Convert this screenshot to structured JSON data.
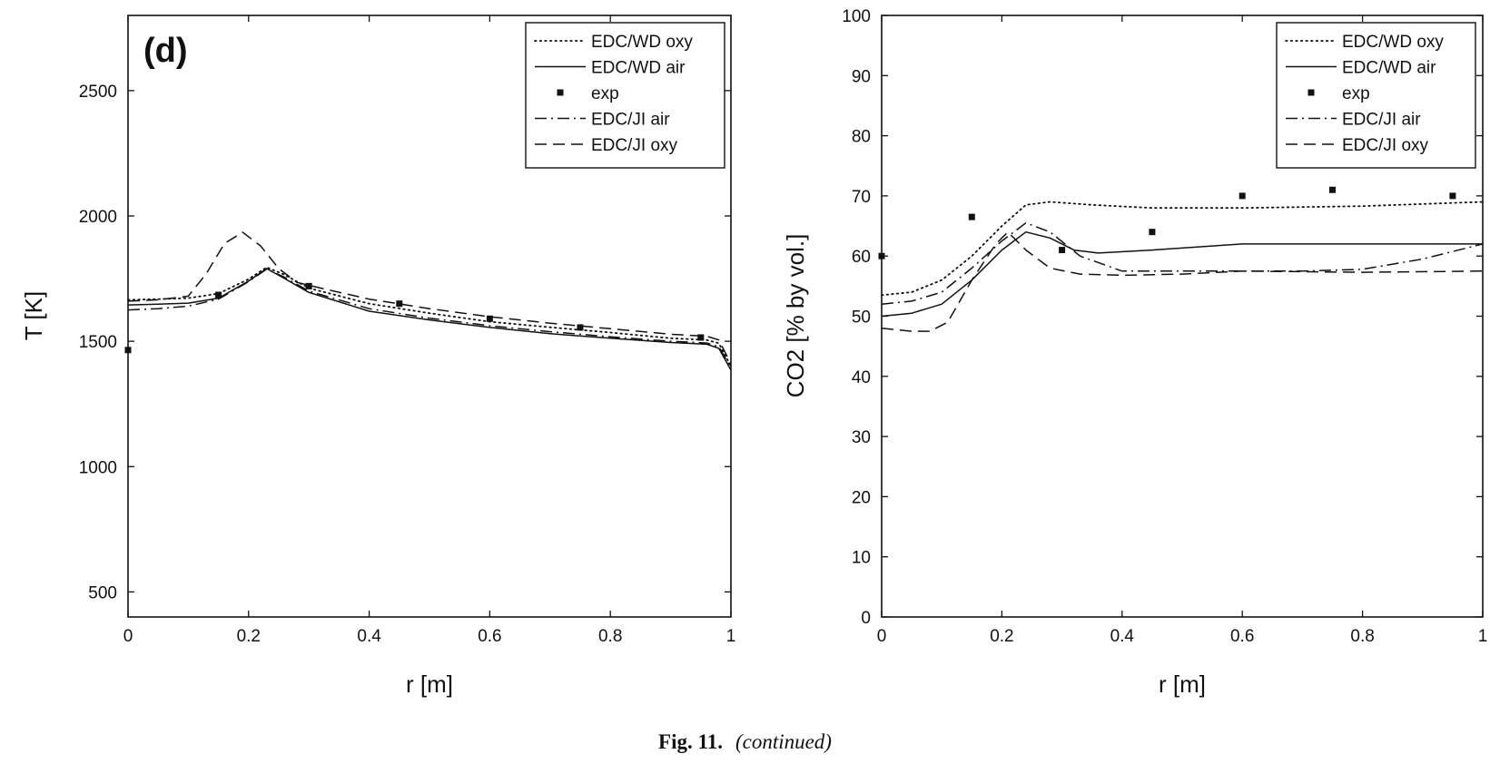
{
  "caption": {
    "figure_number": "Fig. 11.",
    "note": "(continued)"
  },
  "chart_data": [
    {
      "type": "line",
      "panel_label": "(d)",
      "xlabel": "r [m]",
      "ylabel": "T [K]",
      "xlim": [
        0,
        1
      ],
      "ylim": [
        400,
        2800
      ],
      "xticks": [
        0,
        0.2,
        0.4,
        0.6,
        0.8,
        1
      ],
      "xtick_labels": [
        "0",
        "0.2",
        "0.4",
        "0.6",
        "0.8",
        "1"
      ],
      "yticks": [
        500,
        1000,
        1500,
        2000,
        2500
      ],
      "ytick_labels": [
        "500",
        "1000",
        "1500",
        "2000",
        "2500"
      ],
      "grid": false,
      "legend_position": "top-right",
      "series": [
        {
          "name": "EDC/WD oxy",
          "style": "dotted",
          "x": [
            0,
            0.05,
            0.1,
            0.15,
            0.2,
            0.23,
            0.26,
            0.3,
            0.4,
            0.5,
            0.6,
            0.7,
            0.8,
            0.9,
            0.96,
            0.98,
            1.0
          ],
          "y": [
            1665,
            1668,
            1672,
            1690,
            1748,
            1795,
            1765,
            1712,
            1650,
            1612,
            1578,
            1556,
            1535,
            1512,
            1505,
            1492,
            1400
          ]
        },
        {
          "name": "EDC/WD air",
          "style": "solid",
          "x": [
            0,
            0.05,
            0.1,
            0.15,
            0.2,
            0.23,
            0.26,
            0.3,
            0.4,
            0.5,
            0.6,
            0.7,
            0.8,
            0.9,
            0.96,
            0.98,
            1.0
          ],
          "y": [
            1645,
            1648,
            1652,
            1672,
            1740,
            1790,
            1750,
            1695,
            1620,
            1585,
            1555,
            1530,
            1512,
            1495,
            1488,
            1472,
            1385
          ]
        },
        {
          "name": "exp",
          "style": "markers",
          "x": [
            0,
            0.15,
            0.3,
            0.45,
            0.6,
            0.75,
            0.95
          ],
          "y": [
            1465,
            1685,
            1720,
            1650,
            1590,
            1555,
            1515
          ]
        },
        {
          "name": "EDC/JI air",
          "style": "dashdot",
          "x": [
            0,
            0.05,
            0.1,
            0.15,
            0.2,
            0.23,
            0.26,
            0.3,
            0.4,
            0.5,
            0.6,
            0.7,
            0.8,
            0.9,
            0.96,
            0.98,
            1.0
          ],
          "y": [
            1625,
            1630,
            1640,
            1668,
            1738,
            1788,
            1755,
            1700,
            1630,
            1592,
            1562,
            1538,
            1518,
            1500,
            1493,
            1478,
            1395
          ]
        },
        {
          "name": "EDC/JI oxy",
          "style": "dashed",
          "x": [
            0,
            0.05,
            0.1,
            0.13,
            0.16,
            0.19,
            0.22,
            0.25,
            0.28,
            0.32,
            0.4,
            0.5,
            0.6,
            0.7,
            0.8,
            0.9,
            0.96,
            0.98,
            1.0
          ],
          "y": [
            1660,
            1665,
            1680,
            1770,
            1890,
            1935,
            1880,
            1790,
            1735,
            1712,
            1668,
            1630,
            1598,
            1572,
            1550,
            1528,
            1520,
            1505,
            1410
          ]
        }
      ]
    },
    {
      "type": "line",
      "xlabel": "r [m]",
      "ylabel": "CO2 [% by vol.]",
      "xlim": [
        0,
        1
      ],
      "ylim": [
        0,
        100
      ],
      "xticks": [
        0,
        0.2,
        0.4,
        0.6,
        0.8,
        1
      ],
      "xtick_labels": [
        "0",
        "0.2",
        "0.4",
        "0.6",
        "0.8",
        "1"
      ],
      "yticks": [
        0,
        10,
        20,
        30,
        40,
        50,
        60,
        70,
        80,
        90,
        100
      ],
      "ytick_labels": [
        "0",
        "10",
        "20",
        "30",
        "40",
        "50",
        "60",
        "70",
        "80",
        "90",
        "100"
      ],
      "grid": false,
      "legend_position": "top-right",
      "series": [
        {
          "name": "EDC/WD oxy",
          "style": "dotted",
          "x": [
            0,
            0.05,
            0.1,
            0.15,
            0.2,
            0.24,
            0.28,
            0.35,
            0.45,
            0.6,
            0.8,
            1.0
          ],
          "y": [
            53.5,
            54,
            56,
            60,
            65,
            68.5,
            69,
            68.5,
            68,
            68,
            68.3,
            69
          ]
        },
        {
          "name": "EDC/WD air",
          "style": "solid",
          "x": [
            0,
            0.05,
            0.1,
            0.15,
            0.2,
            0.24,
            0.28,
            0.32,
            0.36,
            0.45,
            0.6,
            0.8,
            1.0
          ],
          "y": [
            50,
            50.5,
            52,
            56,
            61,
            64,
            63,
            61,
            60.5,
            61,
            62,
            62,
            62
          ]
        },
        {
          "name": "exp",
          "style": "markers",
          "x": [
            0,
            0.15,
            0.3,
            0.45,
            0.6,
            0.75,
            0.95
          ],
          "y": [
            60,
            66.5,
            61,
            64,
            70,
            71,
            70
          ]
        },
        {
          "name": "EDC/JI air",
          "style": "dashdot",
          "x": [
            0,
            0.05,
            0.1,
            0.15,
            0.2,
            0.24,
            0.28,
            0.33,
            0.4,
            0.5,
            0.6,
            0.7,
            0.8,
            0.9,
            1.0
          ],
          "y": [
            52,
            52.5,
            54,
            58,
            62.5,
            65.5,
            64,
            60,
            57.5,
            57.5,
            57.5,
            57.5,
            57.8,
            59.5,
            62
          ]
        },
        {
          "name": "EDC/JI oxy",
          "style": "dashed",
          "x": [
            0,
            0.05,
            0.08,
            0.11,
            0.15,
            0.19,
            0.21,
            0.24,
            0.28,
            0.33,
            0.4,
            0.5,
            0.6,
            0.8,
            1.0
          ],
          "y": [
            48,
            47.5,
            47.5,
            49,
            56,
            62,
            64,
            61,
            58,
            57,
            56.8,
            57,
            57.5,
            57.3,
            57.5
          ]
        }
      ]
    }
  ]
}
